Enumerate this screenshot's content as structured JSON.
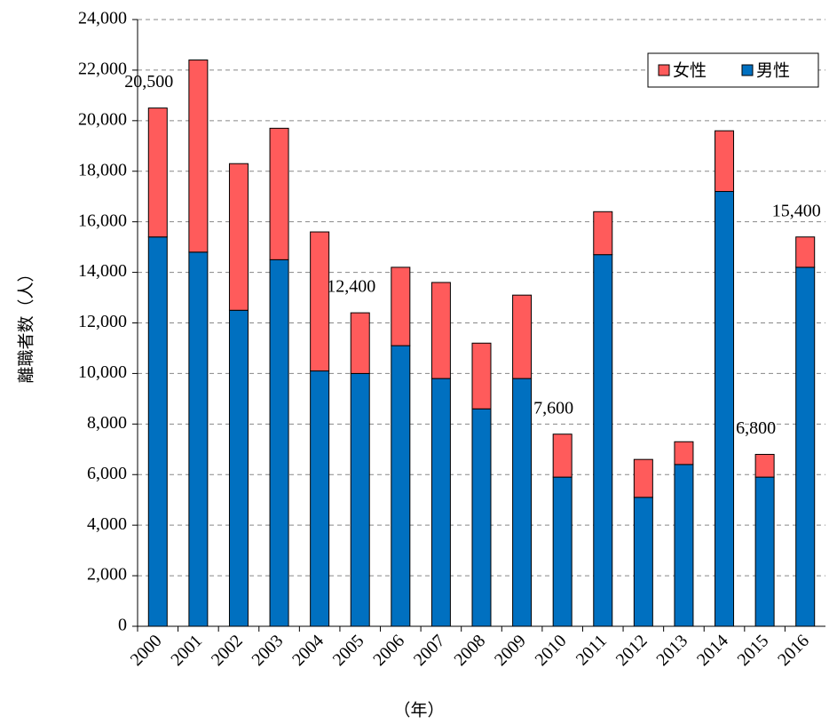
{
  "chart_data": {
    "type": "stacked_bar",
    "x_label": "（年）",
    "y_label": "離職者数（人）",
    "categories": [
      "2000",
      "2001",
      "2002",
      "2003",
      "2004",
      "2005",
      "2006",
      "2007",
      "2008",
      "2009",
      "2010",
      "2011",
      "2012",
      "2013",
      "2014",
      "2015",
      "2016"
    ],
    "series": [
      {
        "name": "男性",
        "color": "#0070c0",
        "values": [
          15400,
          14800,
          12500,
          14500,
          10100,
          10000,
          11100,
          9800,
          8600,
          9800,
          5900,
          14700,
          5100,
          6400,
          17200,
          5900,
          14200
        ]
      },
      {
        "name": "女性",
        "color": "#ff5b5b",
        "values": [
          5100,
          7600,
          5800,
          5200,
          5500,
          2400,
          3100,
          3800,
          2600,
          3300,
          1700,
          1700,
          1500,
          900,
          2400,
          900,
          1200
        ]
      }
    ],
    "annotations": [
      {
        "category": 0,
        "value": 20500,
        "text": "20,500"
      },
      {
        "category": 5,
        "value": 12400,
        "text": "12,400"
      },
      {
        "category": 10,
        "value": 7600,
        "text": "7,600"
      },
      {
        "category": 15,
        "value": 6800,
        "text": "6,800"
      },
      {
        "category": 16,
        "value": 15400,
        "text": "15,400"
      }
    ],
    "ylim": [
      0,
      24000
    ],
    "yticks": [
      0,
      {
        "value": 2000,
        "label": "2,000"
      },
      {
        "value": 4000,
        "label": "4,000"
      },
      {
        "value": 6000,
        "label": "6,000"
      },
      {
        "value": 8000,
        "label": "8,000"
      },
      {
        "value": 10000,
        "label": "10,000"
      },
      {
        "value": 12000,
        "label": "12,000"
      },
      {
        "value": 14000,
        "label": "14,000"
      },
      {
        "value": 16000,
        "label": "16,000"
      },
      {
        "value": 18000,
        "label": "18,000"
      },
      {
        "value": 20000,
        "label": "20,000"
      },
      {
        "value": 22000,
        "label": "22,000"
      },
      {
        "value": 24000,
        "label": "24,000"
      }
    ],
    "grid": true,
    "legend": "upper right"
  }
}
